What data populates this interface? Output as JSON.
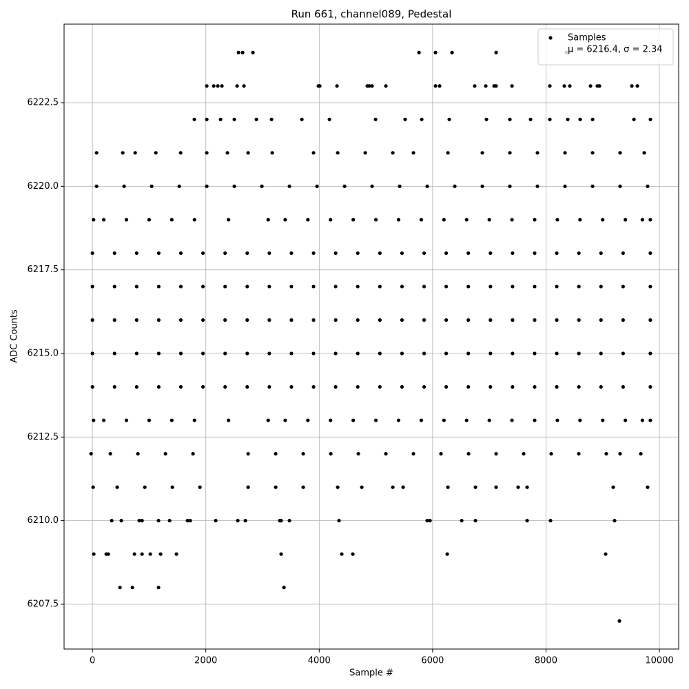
{
  "chart_data": {
    "type": "scatter",
    "title": "Run 661, channel089, Pedestal",
    "x_label": "Sample #",
    "y_label": "ADC Counts",
    "xlim": [
      -500,
      10340
    ],
    "ylim": [
      6206.16,
      6224.85
    ],
    "xticks": [
      0,
      2000,
      4000,
      6000,
      8000,
      10000
    ],
    "yticks": [
      6207.5,
      {
        "value": 6210,
        "label": "6210.0"
      },
      6212.5,
      {
        "value": 6215,
        "label": "6215.0"
      },
      6217.5,
      {
        "value": 6220,
        "label": "6220.0"
      },
      6222.5
    ],
    "grid": true,
    "legend": "upper right",
    "legend_note": "μ = 6216.4, σ = 2.34",
    "series": [
      {
        "name": "Samples",
        "color": "#000000",
        "x": [
          2576,
          2649,
          2831,
          5760,
          6051,
          6343,
          7120,
          8360,
          2017,
          2139,
          2211,
          2284,
          2552,
          2673,
          3985,
          4010,
          4314,
          4848,
          4884,
          4933,
          5176,
          6051,
          6124,
          6743,
          6938,
          7084,
          7120,
          7400,
          8068,
          8323,
          8420,
          8785,
          8906,
          8943,
          9514,
          9611,
          1798,
          2017,
          2260,
          2503,
          2892,
          3159,
          3694,
          4180,
          4994,
          5516,
          5808,
          6294,
          6950,
          7363,
          7728,
          8068,
          8384,
          8603,
          8822,
          9551,
          9842,
          73,
          535,
          754,
          1118,
          1556,
          2017,
          2381,
          2746,
          3171,
          3900,
          4326,
          4812,
          5298,
          5662,
          6270,
          6877,
          7363,
          7849,
          8335,
          8821,
          9307,
          9733,
          73,
          559,
          1045,
          1531,
          2017,
          2503,
          2989,
          3475,
          3961,
          4447,
          4933,
          5419,
          5905,
          6391,
          6877,
          7363,
          7849,
          8335,
          8821,
          9307,
          9793,
          20,
          200,
          600,
          1000,
          1400,
          1800,
          2400,
          3100,
          3400,
          3800,
          4200,
          4600,
          5000,
          5400,
          5800,
          6200,
          6600,
          7000,
          7400,
          7800,
          8200,
          8600,
          9000,
          9400,
          9700,
          9840,
          0,
          390,
          780,
          1170,
          1560,
          1950,
          2340,
          2730,
          3120,
          3510,
          3900,
          4290,
          4680,
          5070,
          5460,
          5850,
          6240,
          6630,
          7020,
          7410,
          7800,
          8190,
          8580,
          8970,
          9360,
          9840,
          0,
          390,
          780,
          1170,
          1560,
          1950,
          2340,
          2730,
          3120,
          3510,
          3900,
          4290,
          4680,
          5070,
          5460,
          5850,
          6240,
          6630,
          7020,
          7410,
          7800,
          8190,
          8580,
          8970,
          9360,
          9840,
          0,
          390,
          780,
          1170,
          1560,
          1950,
          2340,
          2730,
          3120,
          3510,
          3900,
          4290,
          4680,
          5070,
          5460,
          5850,
          6240,
          6630,
          7020,
          7410,
          7800,
          8190,
          8580,
          8970,
          9360,
          9840,
          0,
          390,
          780,
          1170,
          1560,
          1950,
          2340,
          2730,
          3120,
          3510,
          3900,
          4290,
          4680,
          5070,
          5460,
          5850,
          6240,
          6630,
          7020,
          7410,
          7800,
          8190,
          8580,
          8970,
          9360,
          9840,
          0,
          390,
          780,
          1170,
          1560,
          1950,
          2340,
          2730,
          3120,
          3510,
          3900,
          4290,
          4680,
          5070,
          5460,
          5850,
          6240,
          6630,
          7020,
          7410,
          7800,
          8190,
          8580,
          8970,
          9360,
          9840,
          20,
          200,
          600,
          1000,
          1400,
          1800,
          2400,
          3100,
          3400,
          3800,
          4200,
          4600,
          5000,
          5400,
          5800,
          6200,
          6600,
          7000,
          7400,
          7800,
          8200,
          8600,
          9000,
          9400,
          9700,
          9840,
          -24,
          316,
          802,
          1288,
          1774,
          2746,
          3232,
          3718,
          4204,
          4690,
          5176,
          5662,
          6148,
          6634,
          7120,
          7606,
          8092,
          8578,
          9064,
          9307,
          9672,
          12,
          437,
          924,
          1410,
          1896,
          2746,
          3232,
          3718,
          4326,
          4751,
          5298,
          5480,
          6270,
          6756,
          7120,
          7509,
          7667,
          9186,
          9793,
          340,
          510,
          826,
          875,
          1166,
          1361,
          1677,
          1725,
          2175,
          2564,
          2698,
          3305,
          3329,
          3475,
          4350,
          5905,
          5954,
          6513,
          6756,
          7667,
          8080,
          9210,
          24,
          243,
          280,
          741,
          875,
          1021,
          1203,
          1482,
          3329,
          4398,
          4593,
          6258,
          9052,
          486,
          705,
          1166,
          3378,
          9295
        ],
        "values": [
          6224,
          6224,
          6224,
          6224,
          6224,
          6224,
          6224,
          6224,
          6223,
          6223,
          6223,
          6223,
          6223,
          6223,
          6223,
          6223,
          6223,
          6223,
          6223,
          6223,
          6223,
          6223,
          6223,
          6223,
          6223,
          6223,
          6223,
          6223,
          6223,
          6223,
          6223,
          6223,
          6223,
          6223,
          6223,
          6223,
          6222,
          6222,
          6222,
          6222,
          6222,
          6222,
          6222,
          6222,
          6222,
          6222,
          6222,
          6222,
          6222,
          6222,
          6222,
          6222,
          6222,
          6222,
          6222,
          6222,
          6222,
          6221,
          6221,
          6221,
          6221,
          6221,
          6221,
          6221,
          6221,
          6221,
          6221,
          6221,
          6221,
          6221,
          6221,
          6221,
          6221,
          6221,
          6221,
          6221,
          6221,
          6221,
          6221,
          6220,
          6220,
          6220,
          6220,
          6220,
          6220,
          6220,
          6220,
          6220,
          6220,
          6220,
          6220,
          6220,
          6220,
          6220,
          6220,
          6220,
          6220,
          6220,
          6220,
          6220,
          6219,
          6219,
          6219,
          6219,
          6219,
          6219,
          6219,
          6219,
          6219,
          6219,
          6219,
          6219,
          6219,
          6219,
          6219,
          6219,
          6219,
          6219,
          6219,
          6219,
          6219,
          6219,
          6219,
          6219,
          6219,
          6219,
          6218,
          6218,
          6218,
          6218,
          6218,
          6218,
          6218,
          6218,
          6218,
          6218,
          6218,
          6218,
          6218,
          6218,
          6218,
          6218,
          6218,
          6218,
          6218,
          6218,
          6218,
          6218,
          6218,
          6218,
          6218,
          6218,
          6217,
          6217,
          6217,
          6217,
          6217,
          6217,
          6217,
          6217,
          6217,
          6217,
          6217,
          6217,
          6217,
          6217,
          6217,
          6217,
          6217,
          6217,
          6217,
          6217,
          6217,
          6217,
          6217,
          6217,
          6217,
          6217,
          6216,
          6216,
          6216,
          6216,
          6216,
          6216,
          6216,
          6216,
          6216,
          6216,
          6216,
          6216,
          6216,
          6216,
          6216,
          6216,
          6216,
          6216,
          6216,
          6216,
          6216,
          6216,
          6216,
          6216,
          6216,
          6216,
          6215,
          6215,
          6215,
          6215,
          6215,
          6215,
          6215,
          6215,
          6215,
          6215,
          6215,
          6215,
          6215,
          6215,
          6215,
          6215,
          6215,
          6215,
          6215,
          6215,
          6215,
          6215,
          6215,
          6215,
          6215,
          6215,
          6214,
          6214,
          6214,
          6214,
          6214,
          6214,
          6214,
          6214,
          6214,
          6214,
          6214,
          6214,
          6214,
          6214,
          6214,
          6214,
          6214,
          6214,
          6214,
          6214,
          6214,
          6214,
          6214,
          6214,
          6214,
          6214,
          6213,
          6213,
          6213,
          6213,
          6213,
          6213,
          6213,
          6213,
          6213,
          6213,
          6213,
          6213,
          6213,
          6213,
          6213,
          6213,
          6213,
          6213,
          6213,
          6213,
          6213,
          6213,
          6213,
          6213,
          6213,
          6213,
          6212,
          6212,
          6212,
          6212,
          6212,
          6212,
          6212,
          6212,
          6212,
          6212,
          6212,
          6212,
          6212,
          6212,
          6212,
          6212,
          6212,
          6212,
          6212,
          6212,
          6212,
          6211,
          6211,
          6211,
          6211,
          6211,
          6211,
          6211,
          6211,
          6211,
          6211,
          6211,
          6211,
          6211,
          6211,
          6211,
          6211,
          6211,
          6211,
          6211,
          6210,
          6210,
          6210,
          6210,
          6210,
          6210,
          6210,
          6210,
          6210,
          6210,
          6210,
          6210,
          6210,
          6210,
          6210,
          6210,
          6210,
          6210,
          6210,
          6210,
          6210,
          6210,
          6209,
          6209,
          6209,
          6209,
          6209,
          6209,
          6209,
          6209,
          6209,
          6209,
          6209,
          6209,
          6209,
          6208,
          6208,
          6208,
          6208,
          6207
        ]
      }
    ]
  }
}
